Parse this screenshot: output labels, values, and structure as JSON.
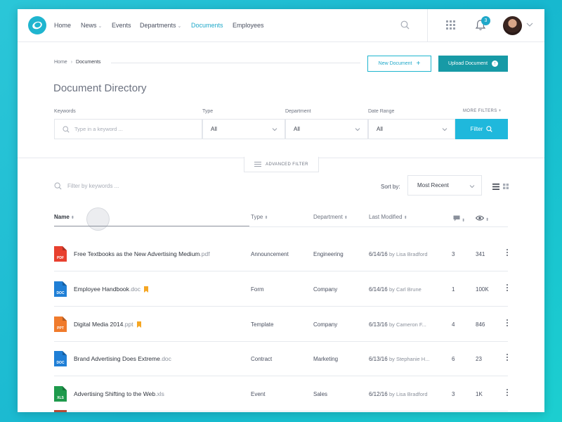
{
  "nav": {
    "items": [
      {
        "label": "Home",
        "caret": false,
        "active": false
      },
      {
        "label": "News",
        "caret": true,
        "active": false
      },
      {
        "label": "Events",
        "caret": false,
        "active": false
      },
      {
        "label": "Departments",
        "caret": true,
        "active": false
      },
      {
        "label": "Documents",
        "caret": false,
        "active": true
      },
      {
        "label": "Employees",
        "caret": false,
        "active": false
      }
    ],
    "notification_count": "3"
  },
  "breadcrumb": {
    "home": "Home",
    "current": "Documents"
  },
  "actions": {
    "new_document": "New Document",
    "upload_document": "Upload Document"
  },
  "page_title": "Document Directory",
  "filters": {
    "keywords_label": "Keywords",
    "keywords_placeholder": "Type in a keyword ...",
    "type_label": "Type",
    "type_value": "All",
    "department_label": "Department",
    "department_value": "All",
    "date_range_label": "Date Range",
    "date_range_value": "All",
    "more_filters": "MORE FILTERS +",
    "filter_button": "Filter",
    "advanced_filter": "ADVANCED FILTER"
  },
  "list_toolbar": {
    "filter_placeholder": "Filter by keywords ...",
    "sort_label": "Sort by:",
    "sort_value": "Most Recent"
  },
  "table": {
    "headers": {
      "name": "Name",
      "type": "Type",
      "department": "Department",
      "modified": "Last Modified"
    },
    "rows": [
      {
        "name": "Free Textbooks as the New Advertising Medium",
        "ext": ".pdf",
        "icon": "PDF",
        "icon_color": "#e8402e",
        "bookmarked": false,
        "type": "Announcement",
        "department": "Engineering",
        "date": "6/14/16",
        "by": "by Lisa Bradford",
        "comments": "3",
        "views": "341"
      },
      {
        "name": "Employee Handbook",
        "ext": ".doc",
        "icon": "DOC",
        "icon_color": "#1f7fd6",
        "bookmarked": true,
        "type": "Form",
        "department": "Company",
        "date": "6/14/16",
        "by": "by Carl Brune",
        "comments": "1",
        "views": "100K"
      },
      {
        "name": "Digital Media 2014",
        "ext": ".ppt",
        "icon": "PPT",
        "icon_color": "#f07b2c",
        "bookmarked": true,
        "type": "Template",
        "department": "Company",
        "date": "6/13/16",
        "by": "by Cameron F...",
        "comments": "4",
        "views": "846"
      },
      {
        "name": "Brand Advertising Does Extreme",
        "ext": ".doc",
        "icon": "DOC",
        "icon_color": "#1f7fd6",
        "bookmarked": false,
        "type": "Contract",
        "department": "Marketing",
        "date": "6/13/16",
        "by": "by Stephanie H...",
        "comments": "6",
        "views": "23"
      },
      {
        "name": "Advertising Shifting to the Web",
        "ext": ".xls",
        "icon": "XLS",
        "icon_color": "#1e9a4c",
        "bookmarked": false,
        "type": "Event",
        "department": "Sales",
        "date": "6/12/16",
        "by": "by Lisa Bradford",
        "comments": "3",
        "views": "1K"
      }
    ]
  },
  "colors": {
    "accent": "#1fa8c9",
    "upload": "#179aa6",
    "filter": "#1fb8dc",
    "bookmark": "#f5a623"
  }
}
